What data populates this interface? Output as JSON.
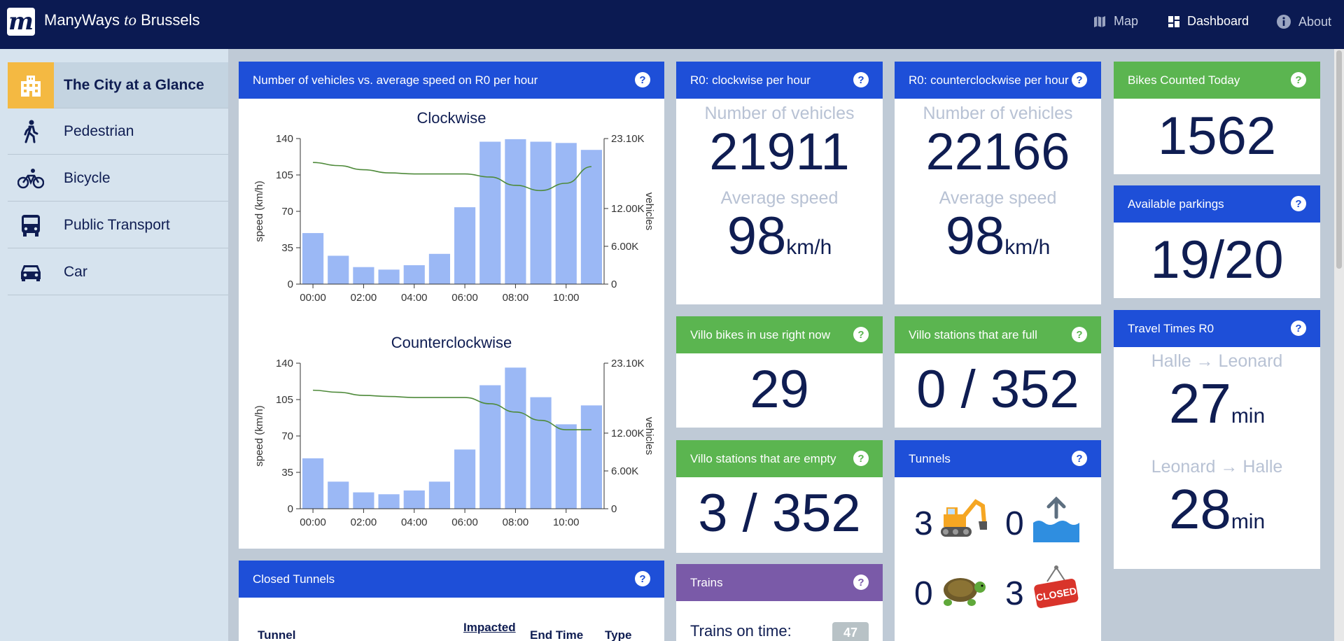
{
  "app": {
    "logo_letter": "m",
    "brand_prefix": "ManyWays ",
    "brand_italic": "to",
    "brand_suffix": " Brussels"
  },
  "nav": {
    "map": "Map",
    "dashboard": "Dashboard",
    "about": "About"
  },
  "sidebar": {
    "items": [
      {
        "label": "The City at a Glance",
        "icon": "city-icon"
      },
      {
        "label": "Pedestrian",
        "icon": "pedestrian-icon"
      },
      {
        "label": "Bicycle",
        "icon": "bicycle-icon"
      },
      {
        "label": "Public Transport",
        "icon": "bus-icon"
      },
      {
        "label": "Car",
        "icon": "car-icon"
      }
    ]
  },
  "vehicles_card": {
    "title": "Number of vehicles vs. average speed on R0 per hour"
  },
  "chart_data": [
    {
      "type": "bar",
      "title": "Clockwise",
      "ylabel": "speed (km/h)",
      "y2label": "vehicles",
      "categories": [
        "00:00",
        "01:00",
        "02:00",
        "03:00",
        "04:00",
        "05:00",
        "06:00",
        "07:00",
        "08:00",
        "09:00",
        "10:00",
        "11:00"
      ],
      "xtick_labels": [
        "00:00",
        "02:00",
        "04:00",
        "06:00",
        "08:00",
        "10:00"
      ],
      "yticks": [
        "0",
        "35",
        "70",
        "105",
        "140"
      ],
      "y2ticks": [
        "0",
        "6.00K",
        "12.00K",
        "23.10K"
      ],
      "ylim": [
        0,
        140
      ],
      "y2lim": [
        0,
        23100
      ],
      "series": [
        {
          "type": "bar",
          "axis": "right",
          "values": [
            8100,
            4500,
            2700,
            2300,
            3000,
            4800,
            12200,
            22600,
            23000,
            22600,
            22400,
            21300
          ]
        },
        {
          "type": "line",
          "axis": "left",
          "values": [
            117,
            114,
            110,
            107,
            106,
            106,
            106,
            103,
            95,
            90,
            97,
            113
          ]
        }
      ]
    },
    {
      "type": "bar",
      "title": "Counterclockwise",
      "ylabel": "speed (km/h)",
      "y2label": "vehicles",
      "categories": [
        "00:00",
        "01:00",
        "02:00",
        "03:00",
        "04:00",
        "05:00",
        "06:00",
        "07:00",
        "08:00",
        "09:00",
        "10:00",
        "11:00"
      ],
      "xtick_labels": [
        "00:00",
        "02:00",
        "04:00",
        "06:00",
        "08:00",
        "10:00"
      ],
      "yticks": [
        "0",
        "35",
        "70",
        "105",
        "140"
      ],
      "y2ticks": [
        "0",
        "6.00K",
        "12.00K",
        "23.10K"
      ],
      "ylim": [
        0,
        140
      ],
      "y2lim": [
        0,
        23100
      ],
      "series": [
        {
          "type": "bar",
          "axis": "right",
          "values": [
            8000,
            4300,
            2600,
            2300,
            2900,
            4300,
            9400,
            19600,
            22400,
            17700,
            13400,
            16400
          ]
        },
        {
          "type": "line",
          "axis": "left",
          "values": [
            114,
            112,
            109,
            108,
            107,
            107,
            107,
            101,
            93,
            85,
            76,
            76
          ]
        }
      ]
    }
  ],
  "cw_card": {
    "title": "R0: clockwise per hour",
    "vehicles_label": "Number of vehicles",
    "vehicles": "21911",
    "speed_label": "Average speed",
    "speed": "98",
    "speed_unit": "km/h"
  },
  "ccw_card": {
    "title": "R0: counterclockwise per hour",
    "vehicles_label": "Number of vehicles",
    "vehicles": "22166",
    "speed_label": "Average speed",
    "speed": "98",
    "speed_unit": "km/h"
  },
  "bikes_card": {
    "title": "Bikes Counted Today",
    "value": "1562"
  },
  "parkings_card": {
    "title": "Available parkings",
    "value": "19/20"
  },
  "travel_card": {
    "title": "Travel Times R0",
    "route1": "Halle → Leonard",
    "time1": "27",
    "route2": "Leonard → Halle",
    "time2": "28",
    "unit": "min"
  },
  "villo_use_card": {
    "title": "Villo bikes in use right now",
    "value": "29"
  },
  "villo_full_card": {
    "title": "Villo stations that are full",
    "value": "0 / 352"
  },
  "villo_empty_card": {
    "title": "Villo stations that are empty",
    "value": "3 / 352"
  },
  "tunnels_card": {
    "title": "Tunnels",
    "works": "3",
    "flood": "0",
    "slow": "0",
    "closed": "3",
    "closed_sign": "CLOSED"
  },
  "trains_card": {
    "title": "Trains",
    "on_time_label": "Trains on time:",
    "on_time": "47"
  },
  "closed_tunnels_card": {
    "title": "Closed Tunnels",
    "columns": [
      "Tunnel",
      "Impacted",
      "End Time",
      "Type"
    ]
  },
  "help_glyph": "?",
  "colors": {
    "navbar": "#0b1a52",
    "blue": "#1e4fd8",
    "green": "#5bb550",
    "purple": "#7a5aa8",
    "bar": "#9bb8f5",
    "line": "#4e8a3a",
    "accent": "#f4b942"
  }
}
